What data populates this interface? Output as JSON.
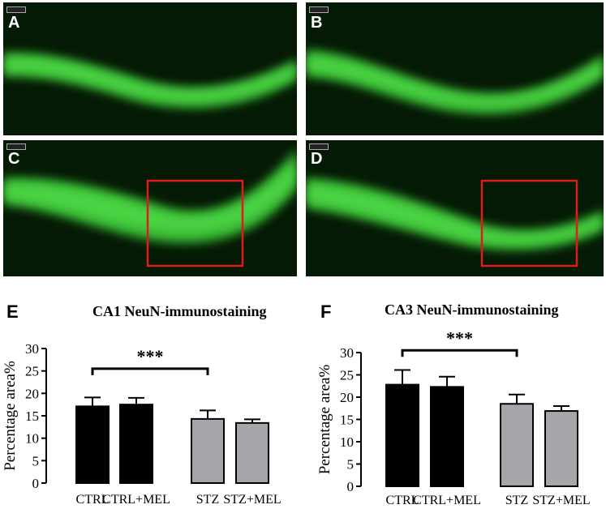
{
  "images": [
    {
      "letter": "A",
      "highlight": false
    },
    {
      "letter": "B",
      "highlight": false
    },
    {
      "letter": "C",
      "highlight": true
    },
    {
      "letter": "D",
      "highlight": true
    }
  ],
  "colors": {
    "tissue_bg": "#051a05",
    "stain": "#3fd23a",
    "highlight_box": "#e01b1b",
    "ctrl_bar": "#000000",
    "stz_bar": "#a5a5aa"
  },
  "chart_data": [
    {
      "panel": "E",
      "type": "bar",
      "title": "CA1 NeuN-immunostaining",
      "ylabel": "Percentage area%",
      "categories": [
        "CTRL",
        "CTRL+MEL",
        "STZ",
        "STZ+MEL"
      ],
      "values": [
        17.1,
        17.5,
        14.3,
        13.4
      ],
      "errors": [
        2.0,
        1.5,
        1.9,
        0.8
      ],
      "bar_colors": [
        "#000000",
        "#000000",
        "#a5a5aa",
        "#a5a5aa"
      ],
      "ylim": [
        0,
        30
      ],
      "yticks": [
        0,
        5,
        10,
        15,
        20,
        25,
        30
      ],
      "significance": {
        "from": "CTRL",
        "to": "STZ",
        "label": "***",
        "level": 25.5
      }
    },
    {
      "panel": "F",
      "type": "bar",
      "title": "CA3 NeuN-immunostaining",
      "ylabel": "Percentage area%",
      "categories": [
        "CTRL",
        "CTRL+MEL",
        "STZ",
        "STZ+MEL"
      ],
      "values": [
        22.8,
        22.3,
        18.5,
        16.9
      ],
      "errors": [
        3.3,
        2.3,
        2.1,
        1.1
      ],
      "bar_colors": [
        "#000000",
        "#000000",
        "#a5a5aa",
        "#a5a5aa"
      ],
      "ylim": [
        0,
        30
      ],
      "yticks": [
        0,
        5,
        10,
        15,
        20,
        25,
        30
      ],
      "significance": {
        "from": "CTRL",
        "to": "STZ",
        "label": "***",
        "level": 30.5
      }
    }
  ]
}
